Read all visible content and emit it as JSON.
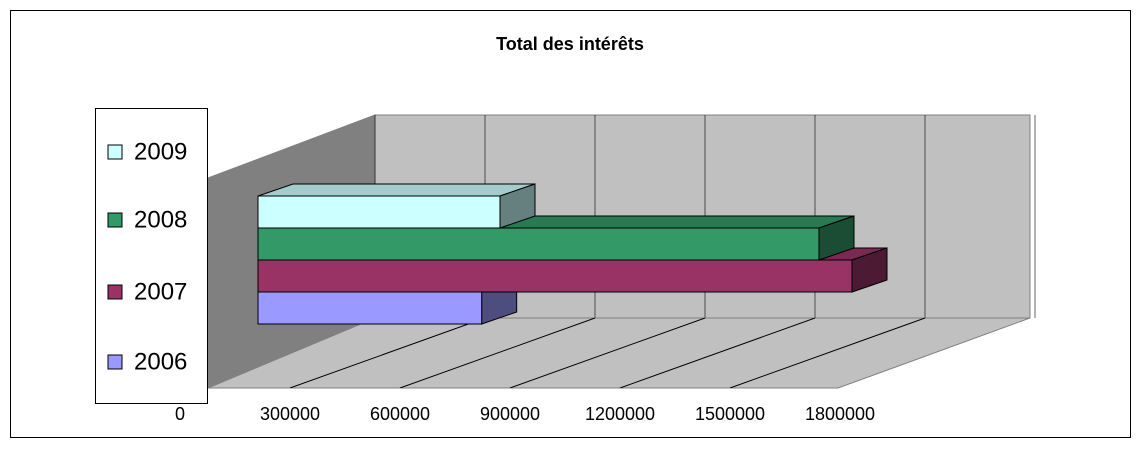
{
  "chart_data": {
    "type": "bar3d",
    "title": "Total des intérêts",
    "categories": [
      "2009",
      "2008",
      "2007",
      "2006"
    ],
    "values": [
      660000,
      1530000,
      1620000,
      610000
    ],
    "colors": [
      "#ccffff",
      "#339966",
      "#993366",
      "#9999ff"
    ],
    "xlim": [
      0,
      1800000
    ],
    "xticks": [
      0,
      300000,
      600000,
      900000,
      1200000,
      1500000,
      1800000
    ],
    "grid": true,
    "legend": "left"
  }
}
